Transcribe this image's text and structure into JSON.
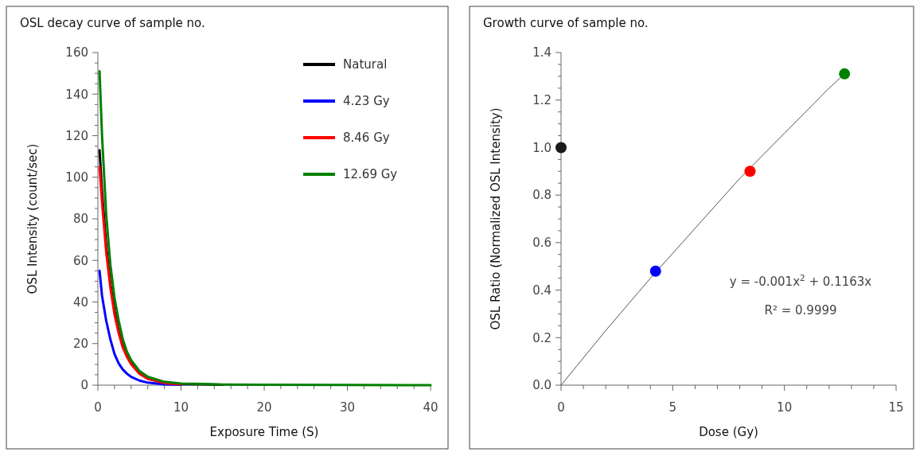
{
  "chart_data": [
    {
      "type": "line",
      "title": "OSL decay curve of sample no.",
      "xlabel": "Exposure Time (S)",
      "ylabel": "OSL Intensity (count/sec)",
      "x": [
        0.2,
        0.5,
        1,
        1.5,
        2,
        2.5,
        3,
        3.5,
        4,
        5,
        6,
        8,
        10,
        15,
        20,
        30,
        40
      ],
      "series": [
        {
          "name": "Natural",
          "color": "#000000",
          "values": [
            113,
            93,
            67,
            49,
            36,
            26,
            19,
            14,
            10.5,
            5.8,
            3.2,
            1.1,
            0.5,
            0.2,
            null,
            null,
            null
          ]
        },
        {
          "name": "4.23 Gy",
          "color": "#0000ff",
          "values": [
            55,
            43,
            31,
            22,
            15,
            10.5,
            7.5,
            5.5,
            4,
            2.2,
            1.2,
            0.4,
            0.2,
            null,
            null,
            null,
            null
          ]
        },
        {
          "name": "8.46 Gy",
          "color": "#ff0000",
          "values": [
            105,
            88,
            64,
            47,
            34,
            25,
            18,
            13.5,
            10,
            5.5,
            3,
            1,
            0.4,
            null,
            null,
            null,
            null
          ]
        },
        {
          "name": "12.69 Gy",
          "color": "#008000",
          "values": [
            151,
            120,
            82,
            58,
            42,
            31,
            22,
            16,
            12,
            6.8,
            4,
            1.6,
            0.8,
            0.3,
            0.2,
            0.1,
            0
          ]
        }
      ],
      "xlim": [
        0,
        40
      ],
      "xticks": [
        0,
        {
          "value": 2,
          "label": null
        },
        {
          "value": 4,
          "label": null
        },
        {
          "value": 6,
          "label": null
        },
        {
          "value": 8,
          "label": null
        },
        10,
        {
          "value": 12,
          "label": null
        },
        {
          "value": 14,
          "label": null
        },
        {
          "value": 16,
          "label": null
        },
        {
          "value": 18,
          "label": null
        },
        20,
        {
          "value": 22,
          "label": null
        },
        {
          "value": 24,
          "label": null
        },
        {
          "value": 26,
          "label": null
        },
        {
          "value": 28,
          "label": null
        },
        30,
        {
          "value": 32,
          "label": null
        },
        {
          "value": 34,
          "label": null
        },
        {
          "value": 36,
          "label": null
        },
        {
          "value": 38,
          "label": null
        },
        40
      ],
      "ylim": [
        0,
        160
      ],
      "yticks": [
        0,
        {
          "value": 5,
          "label": null
        },
        {
          "value": 10,
          "label": null
        },
        {
          "value": 15,
          "label": null
        },
        20,
        {
          "value": 25,
          "label": null
        },
        {
          "value": 30,
          "label": null
        },
        {
          "value": 35,
          "label": null
        },
        40,
        {
          "value": 45,
          "label": null
        },
        {
          "value": 50,
          "label": null
        },
        {
          "value": 55,
          "label": null
        },
        60,
        {
          "value": 65,
          "label": null
        },
        {
          "value": 70,
          "label": null
        },
        {
          "value": 75,
          "label": null
        },
        80,
        {
          "value": 85,
          "label": null
        },
        {
          "value": 90,
          "label": null
        },
        {
          "value": 95,
          "label": null
        },
        100,
        {
          "value": 105,
          "label": null
        },
        {
          "value": 110,
          "label": null
        },
        {
          "value": 115,
          "label": null
        },
        120,
        {
          "value": 125,
          "label": null
        },
        {
          "value": 130,
          "label": null
        },
        {
          "value": 135,
          "label": null
        },
        140,
        {
          "value": 145,
          "label": null
        },
        {
          "value": 150,
          "label": null
        },
        {
          "value": 155,
          "label": null
        },
        160
      ],
      "legend": "top right",
      "marker": "none",
      "line_style": "solid"
    },
    {
      "type": "scatter",
      "title": "Growth curve of sample no.",
      "xlabel": "Dose (Gy)",
      "ylabel": "OSL Ratio (Normalized OSL Intensity)",
      "series": [
        {
          "type": "line",
          "color": "#555555",
          "marker": "none",
          "x": [
            0,
            2,
            4,
            6,
            8,
            10,
            12,
            12.69
          ],
          "values": [
            0,
            0.23,
            0.45,
            0.66,
            0.87,
            1.06,
            1.25,
            1.31
          ]
        },
        {
          "type": "scatter",
          "marker": "circle",
          "x": [
            0,
            4.23,
            8.46,
            12.69
          ],
          "values": [
            1.0,
            0.48,
            0.9,
            1.31
          ],
          "colors": [
            "#1a1a1a",
            "#0000ff",
            "#ff0000",
            "#008000"
          ]
        }
      ],
      "annotations": [
        "y = -0.001x$^{2}$ + 0.1163x",
        "R² = 0.9999"
      ],
      "xlim": [
        0,
        15
      ],
      "xticks": [
        0,
        {
          "value": 1,
          "label": null
        },
        {
          "value": 2,
          "label": null
        },
        {
          "value": 3,
          "label": null
        },
        {
          "value": 4,
          "label": null
        },
        5,
        {
          "value": 6,
          "label": null
        },
        {
          "value": 7,
          "label": null
        },
        {
          "value": 8,
          "label": null
        },
        {
          "value": 9,
          "label": null
        },
        10,
        {
          "value": 11,
          "label": null
        },
        {
          "value": 12,
          "label": null
        },
        {
          "value": 13,
          "label": null
        },
        {
          "value": 14,
          "label": null
        },
        15
      ],
      "ylim": [
        0,
        1.4
      ],
      "yticks": [
        {
          "value": 0,
          "label": "0.0"
        },
        {
          "value": 0.05,
          "label": null
        },
        {
          "value": 0.1,
          "label": null
        },
        {
          "value": 0.15,
          "label": null
        },
        {
          "value": 0.2,
          "label": "0.2"
        },
        {
          "value": 0.25,
          "label": null
        },
        {
          "value": 0.3,
          "label": null
        },
        {
          "value": 0.35,
          "label": null
        },
        {
          "value": 0.4,
          "label": "0.4"
        },
        {
          "value": 0.45,
          "label": null
        },
        {
          "value": 0.5,
          "label": null
        },
        {
          "value": 0.55,
          "label": null
        },
        {
          "value": 0.6,
          "label": "0.6"
        },
        {
          "value": 0.65,
          "label": null
        },
        {
          "value": 0.7,
          "label": null
        },
        {
          "value": 0.75,
          "label": null
        },
        {
          "value": 0.8,
          "label": "0.8"
        },
        {
          "value": 0.85,
          "label": null
        },
        {
          "value": 0.9,
          "label": null
        },
        {
          "value": 0.95,
          "label": null
        },
        {
          "value": 1.0,
          "label": "1.0"
        },
        {
          "value": 1.05,
          "label": null
        },
        {
          "value": 1.1,
          "label": null
        },
        {
          "value": 1.15,
          "label": null
        },
        {
          "value": 1.2,
          "label": "1.2"
        },
        {
          "value": 1.25,
          "label": null
        },
        {
          "value": 1.3,
          "label": null
        },
        {
          "value": 1.35,
          "label": null
        },
        {
          "value": 1.4,
          "label": "1.4"
        }
      ]
    }
  ]
}
